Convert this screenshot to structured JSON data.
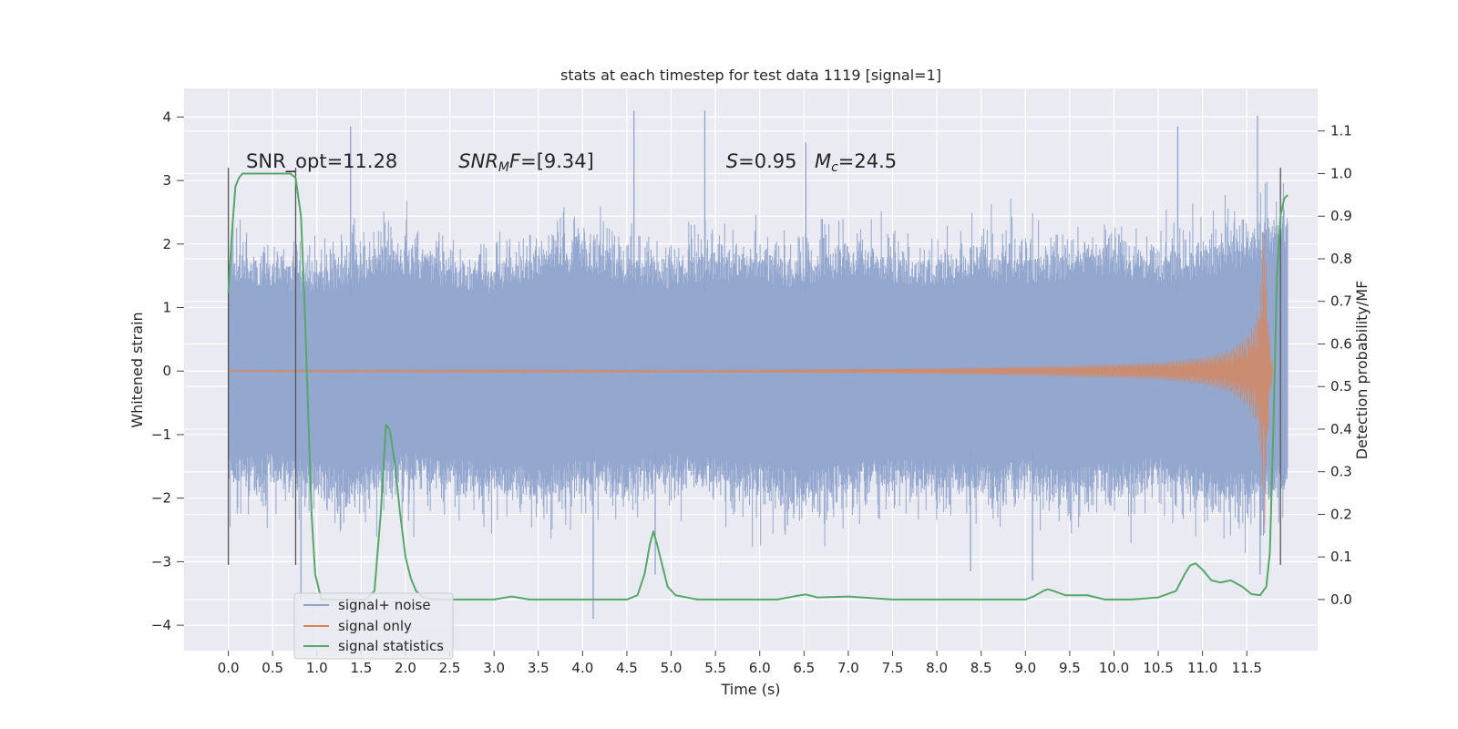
{
  "chart_data": {
    "type": "line",
    "title": "stats at each timestep for test data 1119 [signal=1]",
    "xlabel": "Time (s)",
    "ylabel": "Whitened strain",
    "y2label": "Detection probability/MF",
    "xlim": [
      -0.5,
      12.3
    ],
    "ylim": [
      -4.4,
      4.45
    ],
    "y2lim": [
      -0.12,
      1.2
    ],
    "x_ticks": [
      0.0,
      0.5,
      1.0,
      1.5,
      2.0,
      2.5,
      3.0,
      3.5,
      4.0,
      4.5,
      5.0,
      5.5,
      6.0,
      6.5,
      7.0,
      7.5,
      8.0,
      8.5,
      9.0,
      9.5,
      10.0,
      10.5,
      11.0,
      11.5
    ],
    "y_ticks": [
      -4,
      -3,
      -2,
      -1,
      0,
      1,
      2,
      3,
      4
    ],
    "y2_ticks": [
      0.0,
      0.1,
      0.2,
      0.3,
      0.4,
      0.5,
      0.6,
      0.7,
      0.8,
      0.9,
      1.0,
      1.1
    ],
    "grid": true,
    "legend_position": "lower-left",
    "colors": {
      "background": "#eaeaf2",
      "grid": "#ffffff",
      "noise": "#8fa3cc",
      "signal": "#dd8452",
      "stats": "#55a868",
      "vlines": "#555555"
    },
    "series": [
      {
        "name": "signal+ noise",
        "axis": "left",
        "x_range": [
          0.0,
          11.96
        ],
        "envelope_upper": [
          2.0,
          1.8,
          1.7,
          1.9,
          2.1,
          1.8,
          1.7,
          2.0,
          2.2,
          1.9,
          1.8,
          2.0,
          1.9,
          1.8,
          2.1,
          1.9,
          1.8,
          2.0,
          1.9,
          2.0,
          2.1,
          1.9,
          2.0,
          2.3,
          2.5
        ],
        "envelope_lower": [
          -1.9,
          -1.8,
          -2.0,
          -2.1,
          -1.8,
          -1.9,
          -2.0,
          -2.1,
          -1.9,
          -2.0,
          -1.8,
          -1.9,
          -2.0,
          -2.2,
          -2.0,
          -1.9,
          -2.0,
          -2.0,
          -1.9,
          -2.1,
          -2.0,
          -1.9,
          -2.1,
          -2.2,
          -2.0
        ],
        "peaks": [
          {
            "x": 1.38,
            "y": 3.85
          },
          {
            "x": 4.58,
            "y": 4.1
          },
          {
            "x": 5.38,
            "y": 4.1
          },
          {
            "x": 6.52,
            "y": 3.6
          },
          {
            "x": 11.62,
            "y": 4.02
          },
          {
            "x": 10.72,
            "y": 3.85
          },
          {
            "x": 4.12,
            "y": -3.9
          },
          {
            "x": 0.82,
            "y": -3.6
          },
          {
            "x": 8.38,
            "y": -3.15
          },
          {
            "x": 9.08,
            "y": -3.3
          },
          {
            "x": 4.82,
            "y": -3.2
          },
          {
            "x": 11.65,
            "y": -3.2
          }
        ]
      },
      {
        "name": "signal only",
        "axis": "left",
        "x": [
          0.0,
          6.0,
          8.0,
          9.5,
          10.5,
          11.0,
          11.3,
          11.5,
          11.6,
          11.65,
          11.7,
          11.75,
          11.8
        ],
        "amplitude": [
          0.01,
          0.02,
          0.05,
          0.09,
          0.14,
          0.22,
          0.33,
          0.55,
          0.8,
          1.2,
          2.55,
          0.6,
          0.0
        ]
      },
      {
        "name": "signal statistics",
        "axis": "right",
        "x": [
          0.0,
          0.04,
          0.08,
          0.12,
          0.16,
          0.22,
          0.3,
          0.4,
          0.5,
          0.6,
          0.7,
          0.76,
          0.82,
          0.86,
          0.9,
          0.94,
          0.98,
          1.05,
          1.2,
          1.4,
          1.55,
          1.65,
          1.72,
          1.78,
          1.82,
          1.88,
          1.94,
          2.0,
          2.06,
          2.12,
          2.2,
          2.35,
          2.6,
          3.0,
          3.2,
          3.4,
          3.8,
          4.2,
          4.5,
          4.62,
          4.7,
          4.76,
          4.8,
          4.84,
          4.9,
          4.96,
          5.05,
          5.3,
          5.8,
          6.2,
          6.4,
          6.52,
          6.65,
          7.0,
          7.5,
          8.0,
          8.5,
          9.0,
          9.1,
          9.2,
          9.25,
          9.32,
          9.45,
          9.7,
          9.9,
          10.2,
          10.5,
          10.7,
          10.8,
          10.86,
          10.92,
          11.0,
          11.1,
          11.2,
          11.32,
          11.45,
          11.55,
          11.65,
          11.72,
          11.76,
          11.8,
          11.84,
          11.88,
          11.92,
          11.96
        ],
        "y": [
          0.72,
          0.86,
          0.97,
          0.99,
          1.0,
          1.0,
          1.0,
          1.0,
          1.0,
          1.0,
          1.0,
          0.99,
          0.9,
          0.7,
          0.45,
          0.2,
          0.06,
          0.0,
          0.0,
          0.0,
          0.0,
          0.02,
          0.2,
          0.41,
          0.4,
          0.32,
          0.2,
          0.1,
          0.05,
          0.02,
          0.005,
          0.0,
          0.0,
          0.0,
          0.007,
          0.0,
          0.0,
          0.0,
          0.0,
          0.01,
          0.06,
          0.13,
          0.16,
          0.13,
          0.08,
          0.03,
          0.01,
          0.0,
          0.0,
          0.0,
          0.008,
          0.012,
          0.005,
          0.007,
          0.0,
          0.0,
          0.0,
          0.0,
          0.008,
          0.02,
          0.024,
          0.02,
          0.01,
          0.01,
          0.0,
          0.0,
          0.005,
          0.02,
          0.06,
          0.08,
          0.085,
          0.07,
          0.045,
          0.04,
          0.045,
          0.03,
          0.013,
          0.01,
          0.03,
          0.11,
          0.4,
          0.76,
          0.9,
          0.94,
          0.95
        ]
      }
    ],
    "vlines": [
      {
        "x": 0.0,
        "y_range": [
          -3.05,
          3.2
        ]
      },
      {
        "x": 0.76,
        "y_range": [
          -3.05,
          3.2
        ]
      },
      {
        "x": 11.88,
        "y_range": [
          -3.05,
          3.2
        ]
      }
    ],
    "annotations": [
      {
        "id": "snr-opt",
        "text": "SNR_opt=11.28",
        "x": 0.2,
        "y": 3.2
      },
      {
        "id": "snr-mf",
        "text": "SNR_M F=[9.34]",
        "x": 2.6,
        "y": 3.2
      },
      {
        "id": "s-val",
        "text": "S=0.95",
        "x": 5.62,
        "y": 3.2
      },
      {
        "id": "mc-val",
        "text": "M_c=24.5",
        "x": 6.62,
        "y": 3.2
      }
    ]
  }
}
